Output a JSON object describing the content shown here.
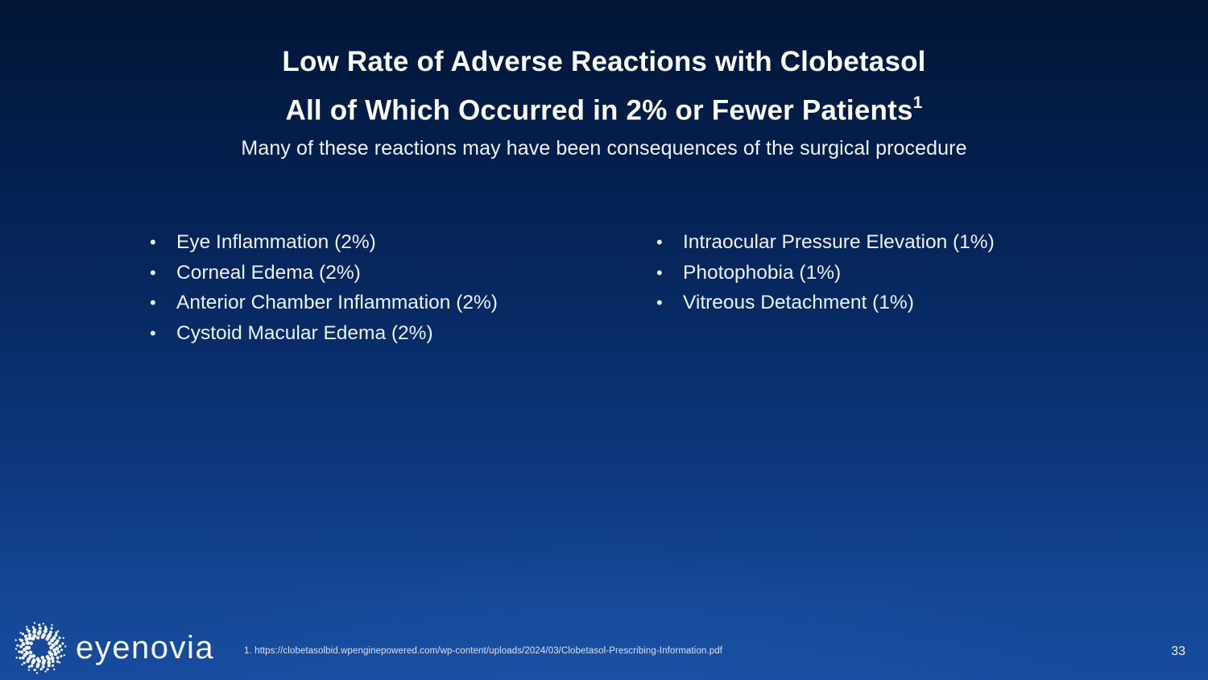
{
  "slide": {
    "title_line1": "Low Rate of Adverse Reactions with Clobetasol",
    "title_line2": "All of Which Occurred in 2% or Fewer Patients",
    "title_superscript": "1",
    "subtitle": "Many of these reactions may have been consequences of the surgical procedure"
  },
  "lists": {
    "bullet_marker": "•",
    "left": [
      "Eye Inflammation (2%)",
      "Corneal Edema (2%)",
      "Anterior Chamber Inflammation (2%)",
      "Cystoid Macular Edema (2%)"
    ],
    "right": [
      "Intraocular Pressure Elevation (1%)",
      "Photophobia (1%)",
      "Vitreous Detachment (1%)"
    ]
  },
  "footer": {
    "logo_text": "eyenovia",
    "footnote": "1. https://clobetasolbid.wpenginepowered.com/wp-content/uploads/2024/03/Clobetasol-Prescribing-Information.pdf",
    "page_number": "33"
  },
  "colors": {
    "background_top": "#021636",
    "background_bottom": "#174b9e",
    "text": "#eef1f4",
    "title": "#fdfdfe"
  }
}
